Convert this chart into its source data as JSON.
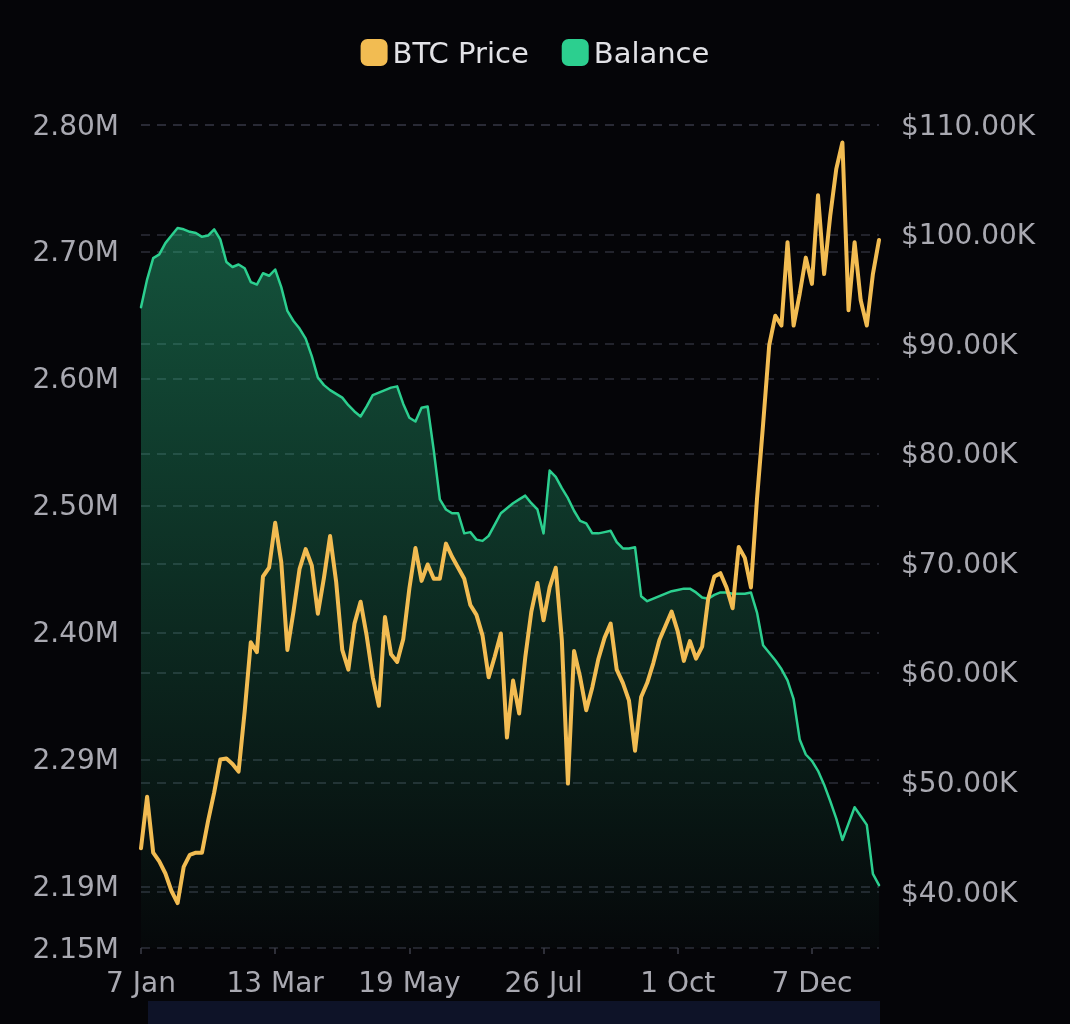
{
  "chart_data": {
    "type": "line",
    "legend": "top",
    "grid": "y",
    "categories": [
      "7 Jan",
      null,
      null,
      null,
      null,
      null,
      null,
      null,
      null,
      null,
      null,
      null,
      null,
      null,
      null,
      null,
      null,
      null,
      null,
      null,
      null,
      null,
      "13 Mar",
      null,
      null,
      null,
      null,
      null,
      null,
      null,
      null,
      null,
      null,
      null,
      null,
      null,
      null,
      null,
      null,
      null,
      null,
      null,
      null,
      null,
      "19 May",
      null,
      null,
      null,
      null,
      null,
      null,
      null,
      null,
      null,
      null,
      null,
      null,
      null,
      null,
      null,
      null,
      null,
      null,
      null,
      null,
      null,
      "26 Jul",
      null,
      null,
      null,
      null,
      null,
      null,
      null,
      null,
      null,
      null,
      null,
      null,
      null,
      null,
      null,
      null,
      null,
      null,
      null,
      null,
      null,
      "1 Oct",
      null,
      null,
      null,
      null,
      null,
      null,
      null,
      null,
      null,
      null,
      null,
      null,
      null,
      null,
      null,
      null,
      null,
      null,
      null,
      null,
      null,
      "7 Dec",
      null,
      null,
      null,
      null,
      null,
      null,
      null,
      null,
      null,
      null,
      null
    ],
    "ylim": [
      2.145,
      2.8
    ],
    "yticks": [
      {
        "value": 2.8,
        "label": "2.80M"
      },
      {
        "value": 2.699,
        "label": "2.70M"
      },
      {
        "value": 2.598,
        "label": "2.60M"
      },
      {
        "value": 2.497,
        "label": "2.50M"
      },
      {
        "value": 2.396,
        "label": "2.40M"
      },
      {
        "value": 2.295,
        "label": "2.29M"
      },
      {
        "value": 2.194,
        "label": "2.19M"
      },
      {
        "value": 2.145,
        "label": "2.15M"
      }
    ],
    "y2lim": [
      34.9,
      110
    ],
    "y2ticks": [
      {
        "value": 40,
        "label": "$40.00K"
      },
      {
        "value": 50,
        "label": "$50.00K"
      },
      {
        "value": 60,
        "label": "$60.00K"
      },
      {
        "value": 70,
        "label": "$70.00K"
      },
      {
        "value": 80,
        "label": "$80.00K"
      },
      {
        "value": 90,
        "label": "$90.00K"
      },
      {
        "value": 100,
        "label": "$100.00K"
      },
      {
        "value": 110,
        "label": "$110.00K"
      }
    ],
    "series": [
      {
        "name": "BTC Price",
        "axis": "y2",
        "color": "#f2bc52",
        "values": [
          44.0,
          48.7,
          43.6,
          42.8,
          41.7,
          40.1,
          39.0,
          42.3,
          43.4,
          43.6,
          43.6,
          46.5,
          49.1,
          52.1,
          52.2,
          51.7,
          51.0,
          56.5,
          62.8,
          61.9,
          68.8,
          69.6,
          73.7,
          70.1,
          62.1,
          65.6,
          69.5,
          71.3,
          69.8,
          65.4,
          68.7,
          72.5,
          68.3,
          62.1,
          60.3,
          64.5,
          66.5,
          63.4,
          59.6,
          57.0,
          65.1,
          61.7,
          61.0,
          63.1,
          67.7,
          71.4,
          68.4,
          69.9,
          68.6,
          68.6,
          71.8,
          70.6,
          69.6,
          68.6,
          66.2,
          65.3,
          63.4,
          59.6,
          61.5,
          63.6,
          54.1,
          59.3,
          56.3,
          61.4,
          65.6,
          68.2,
          64.8,
          67.8,
          69.6,
          63.0,
          49.9,
          62.0,
          59.6,
          56.6,
          58.7,
          61.3,
          63.2,
          64.5,
          60.3,
          59.1,
          57.5,
          52.9,
          57.8,
          59.1,
          60.9,
          63.0,
          64.3,
          65.6,
          63.8,
          61.1,
          62.9,
          61.3,
          62.4,
          66.8,
          68.8,
          69.1,
          67.8,
          65.9,
          71.5,
          70.5,
          67.8,
          75.9,
          82.7,
          89.9,
          92.6,
          91.7,
          99.3,
          91.7,
          94.6,
          97.9,
          95.5,
          103.6,
          96.4,
          101.7,
          106.0,
          108.4,
          93.1,
          99.3,
          94.0,
          91.7,
          96.4,
          99.5
        ]
      },
      {
        "name": "Balance",
        "type": "area",
        "color": "#2ccf8f",
        "values": [
          2.655,
          2.677,
          2.694,
          2.697,
          2.706,
          2.712,
          2.718,
          2.717,
          2.715,
          2.714,
          2.711,
          2.712,
          2.717,
          2.709,
          2.691,
          2.687,
          2.689,
          2.686,
          2.675,
          2.673,
          2.682,
          2.68,
          2.685,
          2.671,
          2.652,
          2.644,
          2.638,
          2.63,
          2.616,
          2.599,
          2.593,
          2.589,
          2.586,
          2.583,
          2.577,
          2.572,
          2.568,
          2.576,
          2.585,
          2.587,
          2.589,
          2.591,
          2.592,
          2.578,
          2.567,
          2.564,
          2.575,
          2.576,
          2.541,
          2.502,
          2.494,
          2.491,
          2.491,
          2.475,
          2.476,
          2.47,
          2.469,
          2.473,
          2.482,
          2.491,
          2.495,
          2.499,
          2.502,
          2.505,
          2.499,
          2.494,
          2.475,
          2.525,
          2.52,
          2.511,
          2.503,
          2.493,
          2.485,
          2.483,
          2.475,
          2.475,
          2.476,
          2.477,
          2.468,
          2.463,
          2.463,
          2.464,
          2.425,
          2.421,
          2.423,
          2.425,
          2.427,
          2.429,
          2.43,
          2.431,
          2.431,
          2.428,
          2.424,
          2.423,
          2.426,
          2.428,
          2.428,
          2.427,
          2.427,
          2.427,
          2.428,
          2.412,
          2.386,
          2.38,
          2.374,
          2.367,
          2.358,
          2.343,
          2.311,
          2.299,
          2.294,
          2.286,
          2.275,
          2.262,
          2.248,
          2.231,
          2.244,
          2.257,
          2.25,
          2.243,
          2.204,
          2.195
        ]
      }
    ]
  }
}
